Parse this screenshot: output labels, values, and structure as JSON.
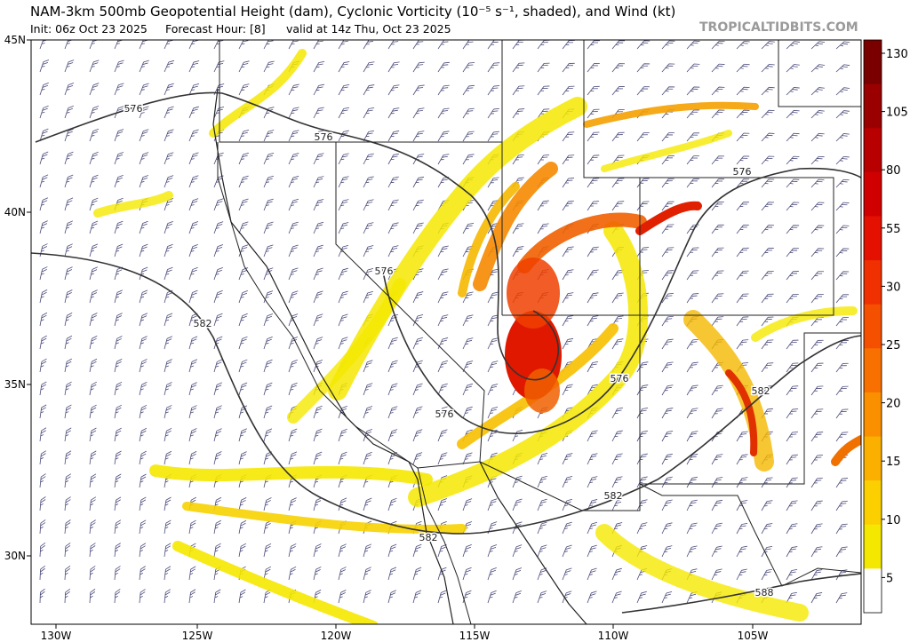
{
  "header": {
    "title": "NAM-3km 500mb Geopotential Height (dam), Cyclonic Vorticity (10⁻⁵ s⁻¹, shaded), and Wind (kt)",
    "init": "Init: 06z Oct 23 2025",
    "forecast_hour": "Forecast Hour: [8]",
    "valid": "valid at 14z Thu, Oct 23 2025",
    "watermark": "TROPICALTIDBITS.COM"
  },
  "map": {
    "latitude_labels": [
      "45N",
      "40N",
      "35N",
      "30N"
    ],
    "longitude_labels": [
      "130W",
      "125W",
      "120W",
      "115W",
      "110W",
      "105W"
    ],
    "contour_labels": [
      "576",
      "576",
      "576",
      "576",
      "576",
      "576",
      "582",
      "582",
      "582",
      "582",
      "588"
    ]
  },
  "colorbar": {
    "labels": [
      "130",
      "105",
      "80",
      "55",
      "30",
      "25",
      "20",
      "15",
      "10",
      "5"
    ]
  }
}
